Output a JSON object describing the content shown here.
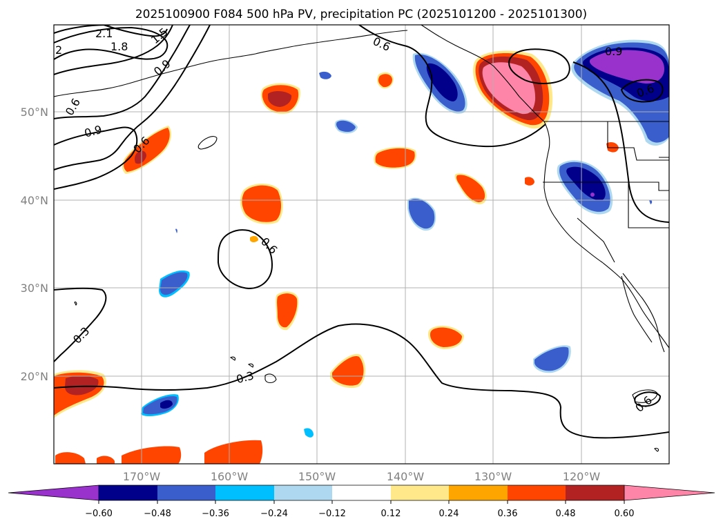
{
  "title": "2025100900 F084 500 hPa PV, precipitation PC (2025101200 - 2025101300)",
  "lat_labels": [
    "50°N",
    "40°N",
    "30°N",
    "20°N"
  ],
  "lon_labels": [
    "170°W",
    "160°W",
    "150°W",
    "140°W",
    "130°W",
    "120°W"
  ],
  "colorbar": {
    "ticks": [
      "−0.60",
      "−0.48",
      "−0.36",
      "−0.24",
      "−0.12",
      "0.12",
      "0.24",
      "0.36",
      "0.48",
      "0.60"
    ],
    "colors": [
      "#9932CC",
      "#00008B",
      "#3A5FCD",
      "#00BFFF",
      "#ADD8F0",
      "#FFFFFF",
      "#FFE88A",
      "#FFA500",
      "#FF4500",
      "#B22222",
      "#FF85A8"
    ]
  },
  "contour_labels": [
    "2.1",
    "1.5",
    "1.8",
    "2",
    "0.9",
    "0.6",
    "0.9",
    "0.6",
    "0.6",
    "0.6",
    "0.3",
    "0.3",
    "0.6",
    "0.9",
    "0.6"
  ]
}
